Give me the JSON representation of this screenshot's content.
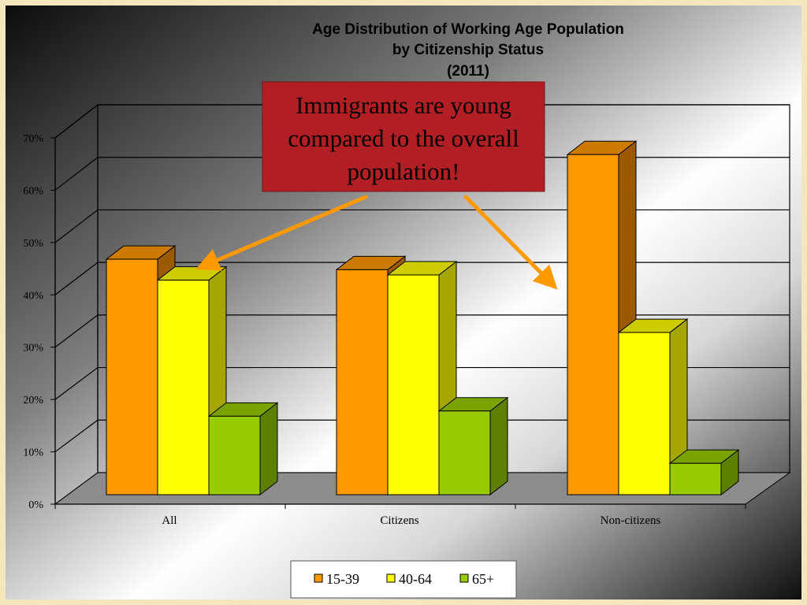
{
  "colors": {
    "series_15_39": "#ff9900",
    "series_40_64": "#ffff00",
    "series_65_plus": "#99cc00",
    "callout_background": "#b11f24",
    "arrow": "#ff9900",
    "slide_border": "#f4e7bf"
  },
  "chart_data": {
    "type": "bar",
    "style": "3d-clustered-column",
    "title_lines": [
      "Age Distribution of Working Age Population",
      "by Citizenship Status",
      "(2011)"
    ],
    "categories": [
      "All",
      "Citizens",
      "Non-citizens"
    ],
    "series": [
      {
        "name": "15-39",
        "values": [
          45,
          43,
          65
        ]
      },
      {
        "name": "40-64",
        "values": [
          41,
          42,
          31
        ]
      },
      {
        "name": "65+",
        "values": [
          15,
          16,
          6
        ]
      }
    ],
    "ylim": [
      0,
      70
    ],
    "yticks": [
      "0%",
      "10%",
      "20%",
      "30%",
      "40%",
      "50%",
      "60%",
      "70%"
    ],
    "grid": true,
    "legend_position": "bottom",
    "xlabel": "",
    "ylabel": ""
  },
  "callout": {
    "lines": [
      "Immigrants are young",
      "compared to the overall",
      "population!"
    ]
  }
}
